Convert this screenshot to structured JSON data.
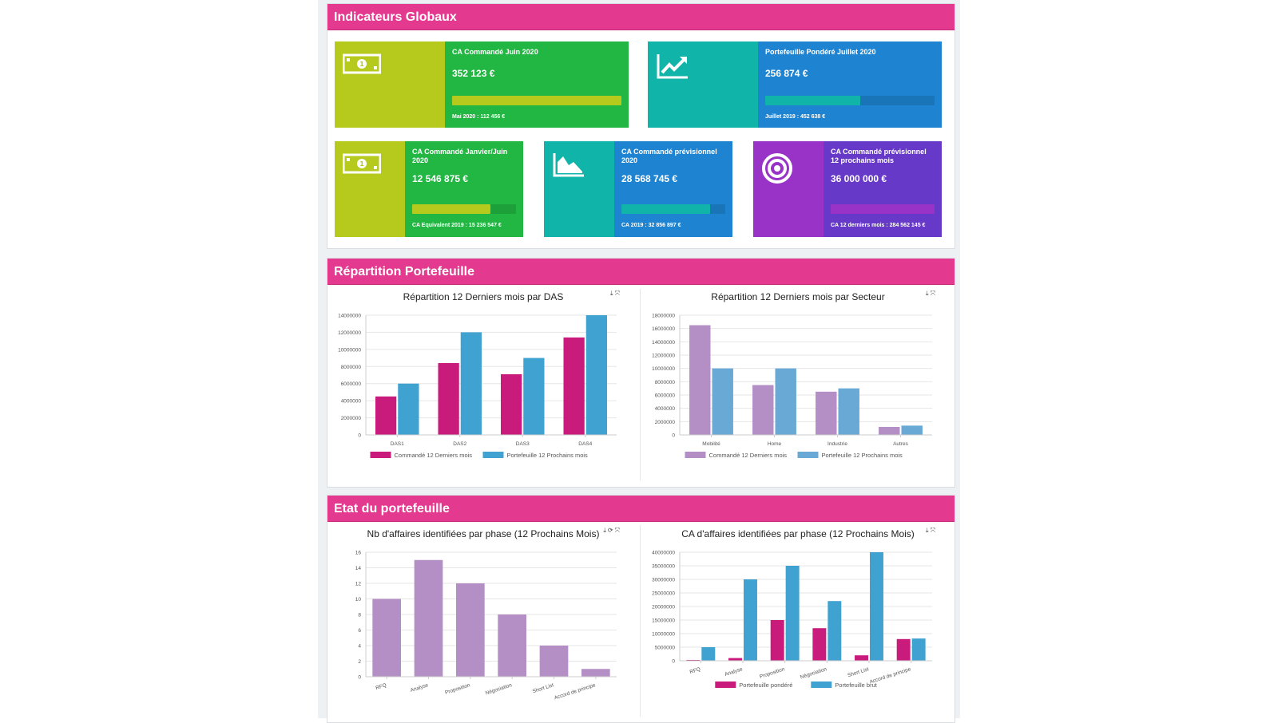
{
  "colors": {
    "header": "#e3398f",
    "green": "#22b642",
    "lime": "#b5ca1c",
    "teal": "#10b4a9",
    "blue": "#1e84d2",
    "purple": "#6739c8",
    "purple_icon": "#9933c8",
    "magenta": "#c91b7c",
    "series_blue": "#3fa2d0",
    "lavender": "#b48fc6",
    "light_blue": "#69a9d6"
  },
  "sections": {
    "global": "Indicateurs Globaux",
    "repartition": "Répartition Portefeuille",
    "etat": "Etat du portefeuille"
  },
  "kpis": [
    {
      "title": "CA Commandé Juin 2020",
      "value": "352 123 €",
      "footer": "Mai 2020 : 112 456 €",
      "progress": 100,
      "icon": "money-icon"
    },
    {
      "title": "Portefeuille Pondéré Juillet 2020",
      "value": "256 874 €",
      "footer": "Juillet 2019 : 452 638 €",
      "progress": 56,
      "icon": "trending-up-icon"
    },
    {
      "title": "CA Commandé Janvier/Juin 2020",
      "value": "12 546 875 €",
      "footer": "CA Equivalent 2019 : 15 236 547 €",
      "progress": 75,
      "icon": "money-icon"
    },
    {
      "title": "CA Commandé prévisionnel 2020",
      "value": "28 568 745 €",
      "footer": "CA 2019 : 32 856 897 €",
      "progress": 85,
      "icon": "area-chart-icon"
    },
    {
      "title": "CA Commandé prévisionnel 12 prochains mois",
      "value": "36 000 000 €",
      "footer": "CA 12 derniers mois : 284 562 145 €",
      "progress": 100,
      "icon": "target-icon"
    }
  ],
  "chart_data": [
    {
      "type": "bar",
      "title": "Répartition 12 Derniers mois par DAS",
      "categories": [
        "DAS1",
        "DAS2",
        "DAS3",
        "DAS4"
      ],
      "series": [
        {
          "name": "Commandé 12 Derniers mois",
          "values": [
            4500000,
            8400000,
            7100000,
            11400000
          ],
          "color": "#c91b7c"
        },
        {
          "name": "Portefeuille 12 Prochains mois",
          "values": [
            6000000,
            12000000,
            9000000,
            14000000
          ],
          "color": "#3fa2d0"
        }
      ],
      "ylim": [
        0,
        14000000
      ],
      "ticks": [
        0,
        2000000,
        4000000,
        6000000,
        8000000,
        10000000,
        12000000,
        14000000
      ],
      "tick_labels": [
        "0",
        "2000000",
        "4000000",
        "6000000",
        "8000000",
        "10000000",
        "12000000",
        "14000000"
      ],
      "xlabel": "",
      "ylabel": "",
      "legend": "bottom",
      "rotate_labels": false
    },
    {
      "type": "bar",
      "title": "Répartition 12 Derniers mois par Secteur",
      "categories": [
        "Mobilité",
        "Home",
        "Industrie",
        "Autres"
      ],
      "series": [
        {
          "name": "Commandé 12 Derniers mois",
          "values": [
            16500000,
            7500000,
            6500000,
            1200000
          ],
          "color": "#b48fc6"
        },
        {
          "name": "Portefeuille 12 Prochains mois",
          "values": [
            10000000,
            10000000,
            7000000,
            1400000
          ],
          "color": "#69a9d6"
        }
      ],
      "ylim": [
        0,
        18000000
      ],
      "ticks": [
        0,
        2000000,
        4000000,
        6000000,
        8000000,
        10000000,
        12000000,
        14000000,
        16000000,
        18000000
      ],
      "tick_labels": [
        "0",
        "2000000",
        "4000000",
        "6000000",
        "8000000",
        "10000000",
        "12000000",
        "14000000",
        "16000000",
        "18000000"
      ],
      "xlabel": "",
      "ylabel": "",
      "legend": "bottom",
      "rotate_labels": false
    },
    {
      "type": "bar",
      "title": "Nb d'affaires identifiées par phase (12 Prochains Mois)",
      "categories": [
        "RFQ",
        "Analyse",
        "Proposition",
        "Négociation",
        "Short List",
        "Accord de principe"
      ],
      "series": [
        {
          "name": "Nb d'affaires",
          "values": [
            10,
            15,
            12,
            8,
            4,
            1
          ],
          "color": "#b48fc6"
        }
      ],
      "ylim": [
        0,
        16
      ],
      "ticks": [
        0,
        2,
        4,
        6,
        8,
        10,
        12,
        14,
        16
      ],
      "tick_labels": [
        "0",
        "2",
        "4",
        "6",
        "8",
        "10",
        "12",
        "14",
        "16"
      ],
      "xlabel": "",
      "ylabel": "",
      "legend": "none",
      "rotate_labels": true
    },
    {
      "type": "bar",
      "title": "CA d'affaires identifiées par phase (12 Prochains Mois)",
      "categories": [
        "RFQ",
        "Analyse",
        "Proposition",
        "Négociation",
        "Short List",
        "Accord de principe"
      ],
      "series": [
        {
          "name": "Portefeuille pondéré",
          "values": [
            300000,
            1000000,
            15000000,
            12000000,
            2000000,
            8000000
          ],
          "color": "#c91b7c"
        },
        {
          "name": "Portefeuille brut",
          "values": [
            5000000,
            30000000,
            35000000,
            22000000,
            40000000,
            8200000
          ],
          "color": "#3fa2d0"
        }
      ],
      "ylim": [
        0,
        40000000
      ],
      "ticks": [
        0,
        5000000,
        10000000,
        15000000,
        20000000,
        25000000,
        30000000,
        35000000,
        40000000
      ],
      "tick_labels": [
        "0",
        "5000000",
        "10000000",
        "15000000",
        "20000000",
        "25000000",
        "30000000",
        "35000000",
        "40000000"
      ],
      "xlabel": "",
      "ylabel": "",
      "legend": "bottom",
      "rotate_labels": true
    }
  ]
}
